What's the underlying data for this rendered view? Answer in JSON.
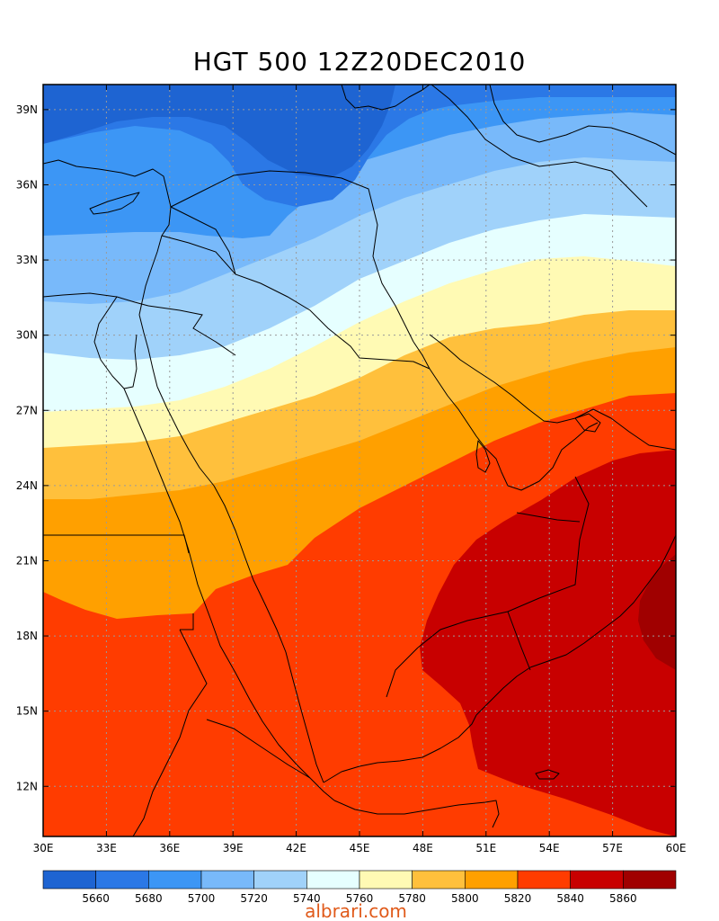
{
  "title": "HGT 500 12Z20DEC2010",
  "watermark": "albrari.com",
  "map": {
    "lon_range": [
      30,
      60
    ],
    "lat_range": [
      10,
      40
    ],
    "lon_ticks": [
      {
        "value": 30,
        "label": "30E"
      },
      {
        "value": 33,
        "label": "33E"
      },
      {
        "value": 36,
        "label": "36E"
      },
      {
        "value": 39,
        "label": "39E"
      },
      {
        "value": 42,
        "label": "42E"
      },
      {
        "value": 45,
        "label": "45E"
      },
      {
        "value": 48,
        "label": "48E"
      },
      {
        "value": 51,
        "label": "51E"
      },
      {
        "value": 54,
        "label": "54E"
      },
      {
        "value": 57,
        "label": "57E"
      },
      {
        "value": 60,
        "label": "60E"
      }
    ],
    "lat_ticks": [
      {
        "value": 12,
        "label": "12N"
      },
      {
        "value": 15,
        "label": "15N"
      },
      {
        "value": 18,
        "label": "18N"
      },
      {
        "value": 21,
        "label": "21N"
      },
      {
        "value": 24,
        "label": "24N"
      },
      {
        "value": 27,
        "label": "27N"
      },
      {
        "value": 30,
        "label": "30N"
      },
      {
        "value": 33,
        "label": "33N"
      },
      {
        "value": 36,
        "label": "36N"
      },
      {
        "value": 39,
        "label": "39N"
      }
    ],
    "grid": true
  },
  "colorbar": {
    "colors": [
      "#1e64d2",
      "#2b78e6",
      "#3c96f5",
      "#78b9fa",
      "#a0d2fa",
      "#e6ffff",
      "#fffab4",
      "#ffc03c",
      "#ffa000",
      "#ff3c00",
      "#c80000",
      "#a00000"
    ],
    "labels": [
      "5660",
      "5680",
      "5700",
      "5720",
      "5740",
      "5760",
      "5780",
      "5800",
      "5820",
      "5840",
      "5860"
    ]
  }
}
